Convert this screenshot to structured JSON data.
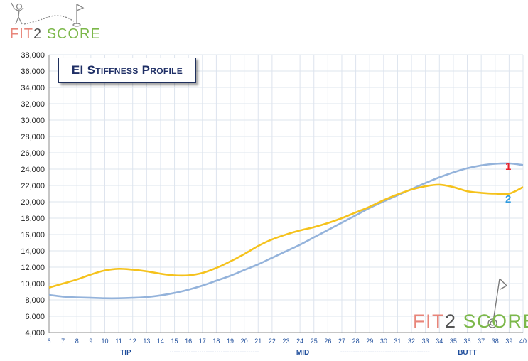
{
  "brand": {
    "part1": "FIT",
    "part2": "2",
    "part3": "SCORE"
  },
  "colors": {
    "series1": "#94b3db",
    "series2": "#f5c21c",
    "label1": "#e8202a",
    "label2": "#2f9be0",
    "axis_text": "#1f4e9c",
    "grid": "#dde4ee"
  },
  "chart_data": {
    "type": "line",
    "title": "EI Stiffness Profile",
    "xlabel": "",
    "ylabel": "",
    "x": [
      6,
      7,
      8,
      9,
      10,
      11,
      12,
      13,
      14,
      15,
      16,
      17,
      18,
      19,
      20,
      21,
      22,
      23,
      24,
      25,
      26,
      27,
      28,
      29,
      30,
      31,
      32,
      33,
      34,
      35,
      36,
      37,
      38,
      39,
      40
    ],
    "xlim": [
      6,
      40
    ],
    "ylim": [
      4000,
      38000
    ],
    "ytick_step": 2000,
    "grid": true,
    "sections": [
      {
        "label": "TIP",
        "at": 11.5
      },
      {
        "label": "MID",
        "at": 24.2
      },
      {
        "label": "BUTT",
        "at": 36.0
      }
    ],
    "separator": "------------------------------------------",
    "series": [
      {
        "name": "1",
        "values": [
          8600,
          8400,
          8300,
          8250,
          8200,
          8200,
          8250,
          8350,
          8550,
          8850,
          9250,
          9750,
          10350,
          10950,
          11650,
          12350,
          13150,
          13950,
          14750,
          15650,
          16550,
          17450,
          18350,
          19250,
          20050,
          20800,
          21550,
          22300,
          23000,
          23600,
          24100,
          24450,
          24650,
          24700,
          24500
        ]
      },
      {
        "name": "2",
        "values": [
          9500,
          10000,
          10500,
          11100,
          11600,
          11800,
          11700,
          11500,
          11200,
          11000,
          11000,
          11300,
          11900,
          12700,
          13600,
          14600,
          15400,
          16000,
          16500,
          16900,
          17400,
          18000,
          18700,
          19400,
          20200,
          20900,
          21500,
          21900,
          22100,
          21800,
          21300,
          21100,
          21000,
          21000,
          21800
        ]
      }
    ]
  }
}
